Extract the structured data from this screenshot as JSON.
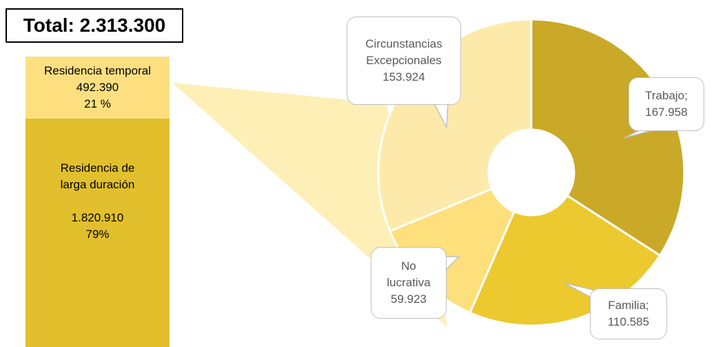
{
  "chart_data": [
    {
      "type": "stacked-bar",
      "title": "Total: 2.313.300",
      "categories": [
        "Residencia temporal",
        "Residencia de larga duración"
      ],
      "values": [
        492390,
        1820910
      ],
      "value_labels": [
        "492.390",
        "1.820.910"
      ],
      "percents": [
        21,
        79
      ],
      "percent_labels": [
        "21 %",
        "79%"
      ],
      "colors": [
        "#fedf80",
        "#e2bf2c"
      ]
    },
    {
      "type": "donut",
      "categories": [
        "Trabajo;",
        "Familia;",
        "No lucrativa",
        "Circunstancias Excepcionales"
      ],
      "values": [
        167958,
        110585,
        59923,
        153924
      ],
      "value_labels": [
        "167.958",
        "110.585",
        "59.923",
        "153.924"
      ],
      "colors": [
        "#c9a927",
        "#ecc92e",
        "#fddf7c",
        "#fdeaab"
      ]
    }
  ]
}
